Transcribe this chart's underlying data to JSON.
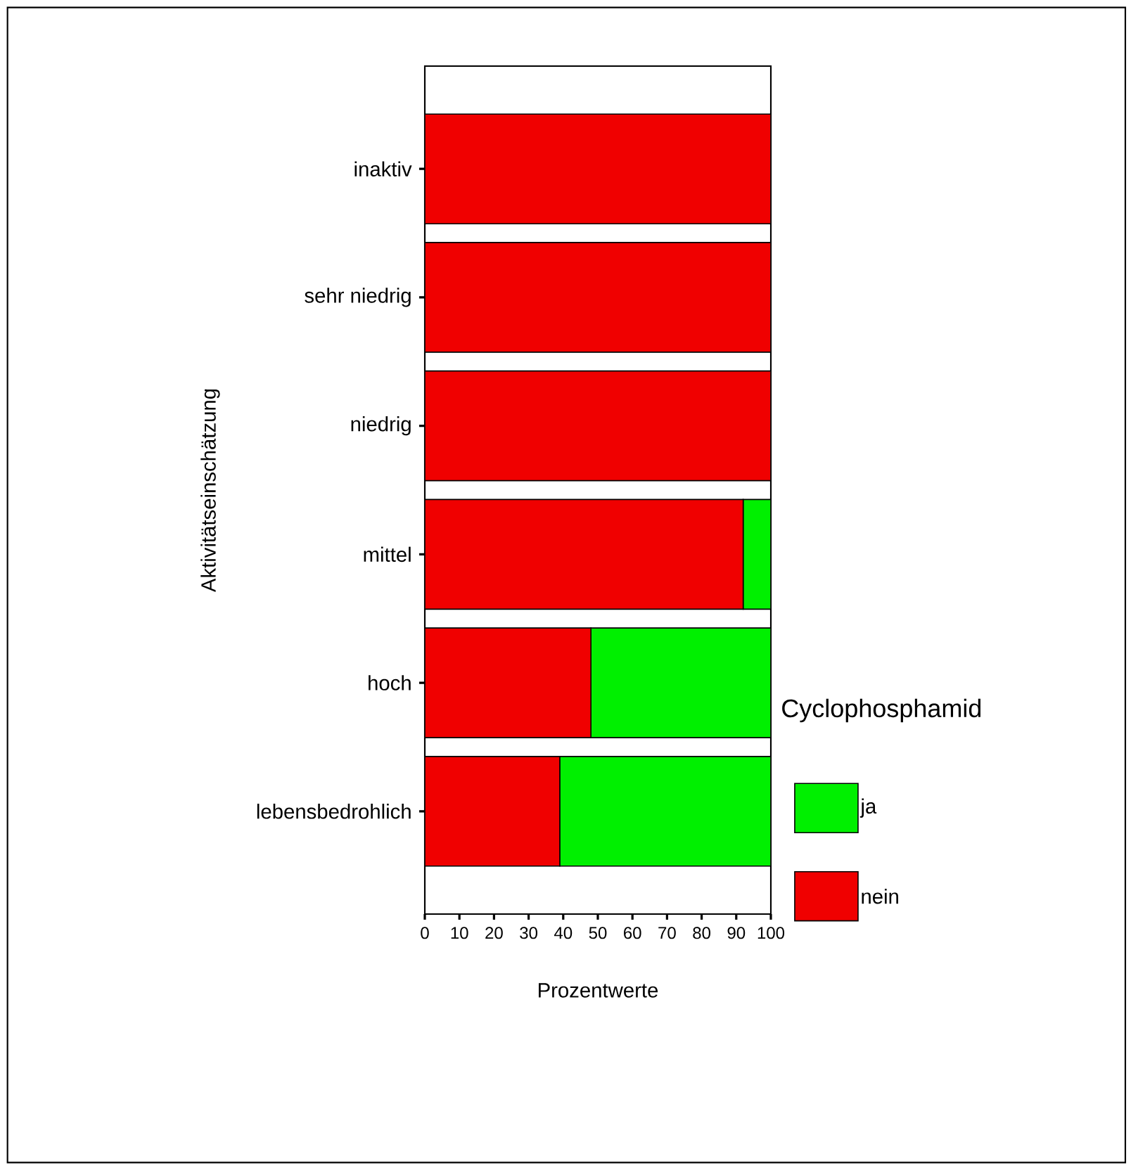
{
  "chart_data": {
    "type": "bar",
    "orientation": "horizontal",
    "stacked": true,
    "xlabel": "Prozentwerte",
    "ylabel": "Aktivitätseinschätzung",
    "legend_title": "Cyclophosphamid",
    "legend": "right",
    "categories": [
      "inaktiv",
      "sehr niedrig",
      "niedrig",
      "mittel",
      "hoch",
      "lebensbedrohlich"
    ],
    "series": [
      {
        "name": "nein",
        "color": "#f00000",
        "values": [
          100,
          100,
          100,
          92,
          48,
          39
        ]
      },
      {
        "name": "ja",
        "color": "#00f000",
        "values": [
          0,
          0,
          0,
          8,
          52,
          61
        ]
      }
    ],
    "xlim": [
      0,
      100
    ],
    "xticks": [
      0,
      10,
      20,
      30,
      40,
      50,
      60,
      70,
      80,
      90,
      100
    ],
    "grid": false
  }
}
